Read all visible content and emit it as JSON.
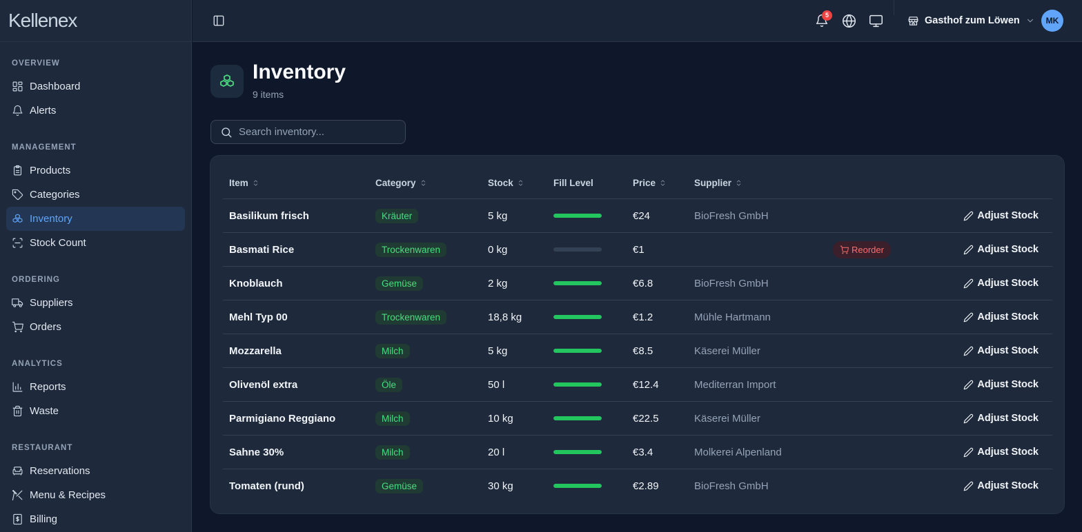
{
  "app": {
    "logo": "Kellenex"
  },
  "sidebar": {
    "sections": [
      {
        "title": "OVERVIEW",
        "items": [
          {
            "label": "Dashboard",
            "icon": "dashboard-icon"
          },
          {
            "label": "Alerts",
            "icon": "bell-icon"
          }
        ]
      },
      {
        "title": "MANAGEMENT",
        "items": [
          {
            "label": "Products",
            "icon": "clipboard-icon"
          },
          {
            "label": "Categories",
            "icon": "tag-icon"
          },
          {
            "label": "Inventory",
            "icon": "boxes-icon",
            "active": true
          },
          {
            "label": "Stock Count",
            "icon": "scan-icon"
          }
        ]
      },
      {
        "title": "ORDERING",
        "items": [
          {
            "label": "Suppliers",
            "icon": "truck-icon"
          },
          {
            "label": "Orders",
            "icon": "cart-icon"
          }
        ]
      },
      {
        "title": "ANALYTICS",
        "items": [
          {
            "label": "Reports",
            "icon": "bar-chart-icon"
          },
          {
            "label": "Waste",
            "icon": "trash-icon"
          }
        ]
      },
      {
        "title": "RESTAURANT",
        "items": [
          {
            "label": "Reservations",
            "icon": "armchair-icon"
          },
          {
            "label": "Menu & Recipes",
            "icon": "utensils-icon"
          },
          {
            "label": "Billing",
            "icon": "receipt-icon"
          }
        ]
      }
    ]
  },
  "topbar": {
    "notifications_count": "5",
    "restaurant_name": "Gasthof zum Löwen",
    "avatar_initials": "MK"
  },
  "page": {
    "title": "Inventory",
    "subtitle": "9 items",
    "search_placeholder": "Search inventory..."
  },
  "table": {
    "columns": [
      "Item",
      "Category",
      "Stock",
      "Fill Level",
      "Price",
      "Supplier"
    ],
    "action_label": "Adjust Stock",
    "reorder_label": "Reorder",
    "rows": [
      {
        "item": "Basilikum frisch",
        "category": "Kräuter",
        "stock": "5 kg",
        "fill": 1.0,
        "price": "€24",
        "supplier": "BioFresh GmbH",
        "reorder": false
      },
      {
        "item": "Basmati Rice",
        "category": "Trockenwaren",
        "stock": "0 kg",
        "fill": 0.0,
        "price": "€1",
        "supplier": "",
        "reorder": true
      },
      {
        "item": "Knoblauch",
        "category": "Gemüse",
        "stock": "2 kg",
        "fill": 1.0,
        "price": "€6.8",
        "supplier": "BioFresh GmbH",
        "reorder": false
      },
      {
        "item": "Mehl Typ 00",
        "category": "Trockenwaren",
        "stock": "18,8 kg",
        "fill": 1.0,
        "price": "€1.2",
        "supplier": "Mühle Hartmann",
        "reorder": false
      },
      {
        "item": "Mozzarella",
        "category": "Milch",
        "stock": "5 kg",
        "fill": 1.0,
        "price": "€8.5",
        "supplier": "Käserei Müller",
        "reorder": false
      },
      {
        "item": "Olivenöl extra",
        "category": "Öle",
        "stock": "50 l",
        "fill": 1.0,
        "price": "€12.4",
        "supplier": "Mediterran Import",
        "reorder": false
      },
      {
        "item": "Parmigiano Reggiano",
        "category": "Milch",
        "stock": "10 kg",
        "fill": 1.0,
        "price": "€22.5",
        "supplier": "Käserei Müller",
        "reorder": false
      },
      {
        "item": "Sahne 30%",
        "category": "Milch",
        "stock": "20 l",
        "fill": 1.0,
        "price": "€3.4",
        "supplier": "Molkerei Alpenland",
        "reorder": false
      },
      {
        "item": "Tomaten (rund)",
        "category": "Gemüse",
        "stock": "30 kg",
        "fill": 1.0,
        "price": "€2.89",
        "supplier": "BioFresh GmbH",
        "reorder": false
      }
    ]
  }
}
